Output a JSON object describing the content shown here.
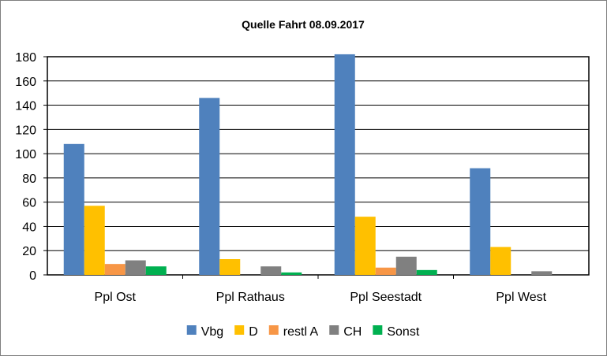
{
  "chart_data": {
    "type": "bar",
    "title": "Quelle Fahrt 08.09.2017",
    "xlabel": "",
    "ylabel": "",
    "categories": [
      "Ppl Ost",
      "Ppl Rathaus",
      "Ppl Seestadt",
      "Ppl West"
    ],
    "series": [
      {
        "name": "Vbg",
        "color": "#4f81bd",
        "values": [
          108,
          146,
          182,
          88
        ]
      },
      {
        "name": "D",
        "color": "#ffc000",
        "values": [
          57,
          13,
          48,
          23
        ]
      },
      {
        "name": "restl A",
        "color": "#f79646",
        "values": [
          9,
          0,
          6,
          0
        ]
      },
      {
        "name": "CH",
        "color": "#808080",
        "values": [
          12,
          7,
          15,
          3
        ]
      },
      {
        "name": "Sonst",
        "color": "#00b050",
        "values": [
          7,
          2,
          4,
          0
        ]
      }
    ],
    "ylim": [
      0,
      180
    ],
    "yticks": [
      0,
      20,
      40,
      60,
      80,
      100,
      120,
      140,
      160,
      180
    ],
    "grid": true,
    "legend_position": "bottom"
  }
}
